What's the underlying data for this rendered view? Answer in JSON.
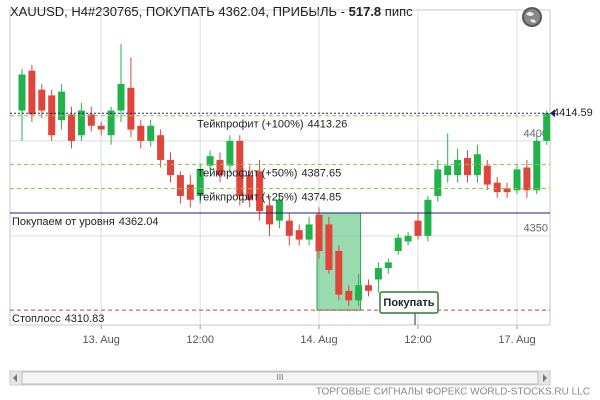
{
  "chart_data": {
    "type": "candlestick",
    "title": "XAUUSD, H4#230765, ПОКУПАТЬ 4362.04, ПРИБЫЛЬ -",
    "profit": 517.8,
    "profit_unit": "пипс",
    "categories": [
      null,
      null,
      null,
      null,
      null,
      null,
      null,
      null,
      "13. Aug",
      null,
      null,
      null,
      null,
      null,
      null,
      null,
      null,
      null,
      "12:00",
      null,
      null,
      null,
      null,
      null,
      null,
      null,
      null,
      null,
      null,
      null,
      "14. Aug",
      null,
      null,
      null,
      null,
      null,
      null,
      null,
      null,
      null,
      "12:00",
      null,
      null,
      null,
      null,
      null,
      null,
      null,
      null,
      null,
      "17. Aug",
      null,
      null,
      null
    ],
    "open": [
      4416,
      4437,
      4427,
      4424,
      4411,
      4414,
      4403,
      4414,
      4408,
      4403,
      4416,
      4428,
      4408,
      4400,
      4403,
      4390,
      4382,
      4377,
      4371,
      4387,
      4390,
      4387,
      4400,
      4382,
      4384,
      4366,
      4358,
      4358,
      4353,
      4348,
      4361,
      4356,
      4342,
      4321,
      4316,
      4324,
      4327,
      4333,
      4342,
      4347,
      4358,
      4350,
      4371,
      4382,
      4382,
      4391,
      4382,
      4387,
      4378,
      4375,
      4374,
      4386,
      4374,
      4400
    ],
    "high": [
      4438,
      4440,
      4430,
      4427,
      4430,
      4418,
      4420,
      4418,
      4410,
      4418,
      4451,
      4444,
      4411,
      4411,
      4406,
      4394,
      4384,
      4382,
      4388,
      4395,
      4394,
      4403,
      4403,
      4387,
      4390,
      4370,
      4372,
      4362,
      4356,
      4360,
      4365,
      4360,
      4345,
      4324,
      4330,
      4327,
      4336,
      4338,
      4351,
      4352,
      4362,
      4371,
      4390,
      4404,
      4396,
      4395,
      4398,
      4390,
      4381,
      4378,
      4388,
      4390,
      4403,
      4416
    ],
    "low": [
      4400,
      4410,
      4412,
      4400,
      4406,
      4396,
      4400,
      4405,
      4403,
      4398,
      4410,
      4402,
      4396,
      4397,
      4386,
      4378,
      4367,
      4365,
      4367,
      4384,
      4378,
      4383,
      4366,
      4365,
      4358,
      4350,
      4354,
      4345,
      4345,
      4345,
      4338,
      4330,
      4316,
      4313,
      4313,
      4318,
      4320,
      4330,
      4340,
      4345,
      4348,
      4347,
      4368,
      4378,
      4378,
      4378,
      4378,
      4374,
      4370,
      4370,
      4372,
      4370,
      4372,
      4398
    ],
    "close": [
      4435,
      4414,
      4416,
      4403,
      4426,
      4400,
      4416,
      4408,
      4406,
      4416,
      4430,
      4406,
      4400,
      4408,
      4390,
      4382,
      4371,
      4369,
      4385,
      4392,
      4382,
      4400,
      4371,
      4369,
      4363,
      4356,
      4369,
      4350,
      4348,
      4356,
      4342,
      4332,
      4319,
      4316,
      4324,
      4321,
      4333,
      4336,
      4349,
      4350,
      4350,
      4369,
      4385,
      4387,
      4390,
      4382,
      4393,
      4377,
      4373,
      4373,
      4385,
      4374,
      4400,
      4414.59
    ],
    "up_color": "#21b24b",
    "down_color": "#e0453c",
    "ylim": [
      4303,
      4469
    ],
    "yticks": [
      4400,
      4350
    ],
    "last_price": 4414.59,
    "levels": [
      {
        "name": "Тейкпрофит (+100%)",
        "value": 4413.26,
        "color": "#8bc34a"
      },
      {
        "name": "Тейкпрофит (+50%)",
        "value": 4387.65,
        "color": "#8bc34a"
      },
      {
        "name": "Тейкпрофит (+25%)",
        "value": 4374.85,
        "color": "#8bc34a"
      },
      {
        "name": "Покупаем от уровня",
        "value": 4362.04,
        "color": "#1a237e"
      },
      {
        "name": "Стоплосс",
        "value": 4310.83,
        "color": "#e53935"
      }
    ],
    "signal": "Покупать",
    "footer": "ТОРГОВЫЕ СИГНАЛЫ ФОРЕКС WORLD-STOCKS.RU LLC",
    "scroll_grip": "III"
  }
}
